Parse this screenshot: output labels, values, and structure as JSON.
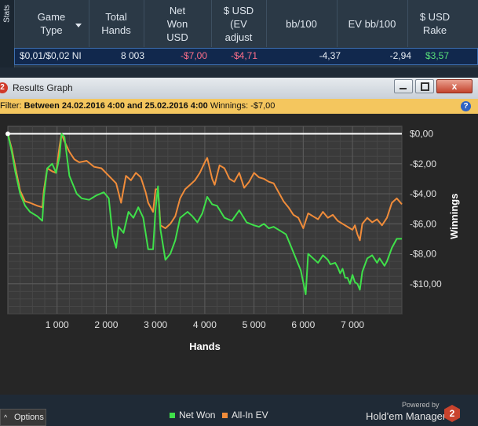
{
  "stats": {
    "tab_label": "Stats",
    "columns": [
      {
        "label": "Game\nType"
      },
      {
        "label": "Total\nHands"
      },
      {
        "label": "Net\nWon\nUSD"
      },
      {
        "label": "$ USD\n(EV\nadjust"
      },
      {
        "label": "bb/100"
      },
      {
        "label": "EV bb/100"
      },
      {
        "label": "$ USD\nRake"
      }
    ],
    "row": {
      "game_type": "$0,01/$0,02 NI",
      "total_hands": "8 003",
      "net_won": "-$7,00",
      "ev_adjusted": "-$4,71",
      "bb100": "-4,37",
      "ev_bb100": "-2,94",
      "rake": "$3,57"
    },
    "colors": {
      "negative": "#ff6f8a",
      "positive": "#58e07a"
    }
  },
  "window": {
    "badge": "2",
    "title": "Results Graph",
    "close_glyph": "x"
  },
  "filter": {
    "prefix": "Filter:",
    "range": "Between 24.02.2016 4:00 and 25.02.2016 4:00",
    "winnings": "Winnings: -$7,00",
    "help_glyph": "?"
  },
  "chart_data": {
    "type": "line",
    "xlabel": "Hands",
    "ylabel": "Winnings",
    "xlim": [
      0,
      8003
    ],
    "ylim": [
      -12,
      0.5
    ],
    "x_ticks": [
      1000,
      2000,
      3000,
      4000,
      5000,
      6000,
      7000
    ],
    "x_tick_labels": [
      "1 000",
      "2 000",
      "3 000",
      "4 000",
      "5 000",
      "6 000",
      "7 000"
    ],
    "y_ticks": [
      0,
      -2,
      -4,
      -6,
      -8,
      -10
    ],
    "y_tick_labels": [
      "$0,00",
      "-$2,00",
      "-$4,00",
      "-$6,00",
      "-$8,00",
      "-$10,00"
    ],
    "grid": true,
    "legend": "bottom",
    "series": [
      {
        "name": "Net Won",
        "color": "#3fe04a",
        "points": [
          [
            0,
            0
          ],
          [
            80,
            -1.2
          ],
          [
            150,
            -2.5
          ],
          [
            250,
            -4
          ],
          [
            350,
            -4.8
          ],
          [
            450,
            -5.2
          ],
          [
            600,
            -5.5
          ],
          [
            700,
            -5.8
          ],
          [
            730,
            -4.2
          ],
          [
            800,
            -2.3
          ],
          [
            900,
            -2
          ],
          [
            980,
            -2.6
          ],
          [
            1050,
            -1.5
          ],
          [
            1090,
            0
          ],
          [
            1150,
            -0.2
          ],
          [
            1250,
            -2.8
          ],
          [
            1400,
            -4
          ],
          [
            1500,
            -4.3
          ],
          [
            1650,
            -4.4
          ],
          [
            1800,
            -4.1
          ],
          [
            1950,
            -3.9
          ],
          [
            2050,
            -4.3
          ],
          [
            2130,
            -6.8
          ],
          [
            2200,
            -7.6
          ],
          [
            2250,
            -6.2
          ],
          [
            2350,
            -6.6
          ],
          [
            2450,
            -5.2
          ],
          [
            2550,
            -5.6
          ],
          [
            2650,
            -4.9
          ],
          [
            2750,
            -5.6
          ],
          [
            2850,
            -7.7
          ],
          [
            2950,
            -7.7
          ],
          [
            3000,
            -5
          ],
          [
            3050,
            -3.5
          ],
          [
            3100,
            -6.4
          ],
          [
            3200,
            -8.4
          ],
          [
            3300,
            -8
          ],
          [
            3400,
            -7.1
          ],
          [
            3500,
            -5.6
          ],
          [
            3650,
            -5.2
          ],
          [
            3750,
            -5.5
          ],
          [
            3850,
            -5.9
          ],
          [
            3950,
            -5.3
          ],
          [
            4050,
            -4.2
          ],
          [
            4150,
            -4.7
          ],
          [
            4250,
            -4.8
          ],
          [
            4400,
            -5.6
          ],
          [
            4550,
            -5.8
          ],
          [
            4700,
            -5.1
          ],
          [
            4850,
            -5.9
          ],
          [
            5000,
            -6.1
          ],
          [
            5100,
            -6.2
          ],
          [
            5200,
            -6
          ],
          [
            5300,
            -6.3
          ],
          [
            5400,
            -6.2
          ],
          [
            5550,
            -6.5
          ],
          [
            5650,
            -6.7
          ],
          [
            5750,
            -7.5
          ],
          [
            5850,
            -8.3
          ],
          [
            5950,
            -9.1
          ],
          [
            6050,
            -10.7
          ],
          [
            6100,
            -8
          ],
          [
            6200,
            -8.3
          ],
          [
            6300,
            -8.6
          ],
          [
            6400,
            -8.1
          ],
          [
            6500,
            -8.4
          ],
          [
            6550,
            -8.7
          ],
          [
            6650,
            -8.6
          ],
          [
            6700,
            -8.9
          ],
          [
            6750,
            -9.3
          ],
          [
            6800,
            -9
          ],
          [
            6850,
            -9.6
          ],
          [
            6900,
            -9.6
          ],
          [
            6950,
            -10
          ],
          [
            7000,
            -9.4
          ],
          [
            7050,
            -9.9
          ],
          [
            7100,
            -10
          ],
          [
            7150,
            -10.4
          ],
          [
            7200,
            -9.2
          ],
          [
            7300,
            -8.3
          ],
          [
            7400,
            -8.1
          ],
          [
            7500,
            -8.6
          ],
          [
            7550,
            -8.3
          ],
          [
            7650,
            -8.8
          ],
          [
            7700,
            -8.5
          ],
          [
            7800,
            -7.6
          ],
          [
            7900,
            -7
          ],
          [
            8003,
            -7
          ]
        ]
      },
      {
        "name": "All-In EV",
        "color": "#f08c3a",
        "points": [
          [
            0,
            0
          ],
          [
            80,
            -1
          ],
          [
            150,
            -2.2
          ],
          [
            250,
            -3.8
          ],
          [
            350,
            -4.5
          ],
          [
            450,
            -4.6
          ],
          [
            600,
            -4.8
          ],
          [
            700,
            -4.9
          ],
          [
            730,
            -3.8
          ],
          [
            800,
            -2.3
          ],
          [
            900,
            -2.5
          ],
          [
            980,
            -2.6
          ],
          [
            1050,
            -0.8
          ],
          [
            1090,
            0
          ],
          [
            1150,
            -0.5
          ],
          [
            1250,
            -1.2
          ],
          [
            1350,
            -1.7
          ],
          [
            1450,
            -1.9
          ],
          [
            1600,
            -1.8
          ],
          [
            1750,
            -2.2
          ],
          [
            1900,
            -2.3
          ],
          [
            2050,
            -2.8
          ],
          [
            2200,
            -3.3
          ],
          [
            2300,
            -4.6
          ],
          [
            2400,
            -2.8
          ],
          [
            2500,
            -3.1
          ],
          [
            2600,
            -2.6
          ],
          [
            2700,
            -2.9
          ],
          [
            2800,
            -3.9
          ],
          [
            2850,
            -4.6
          ],
          [
            2950,
            -5.2
          ],
          [
            3000,
            -3.7
          ],
          [
            3050,
            -3.7
          ],
          [
            3100,
            -6.1
          ],
          [
            3200,
            -6.3
          ],
          [
            3300,
            -6
          ],
          [
            3400,
            -5.5
          ],
          [
            3500,
            -4.3
          ],
          [
            3600,
            -3.7
          ],
          [
            3700,
            -3.4
          ],
          [
            3800,
            -3.1
          ],
          [
            3900,
            -2.6
          ],
          [
            4000,
            -1.9
          ],
          [
            4050,
            -1.6
          ],
          [
            4150,
            -3
          ],
          [
            4200,
            -3.4
          ],
          [
            4300,
            -2.1
          ],
          [
            4400,
            -2.3
          ],
          [
            4500,
            -3
          ],
          [
            4600,
            -3.2
          ],
          [
            4700,
            -2.6
          ],
          [
            4800,
            -3.6
          ],
          [
            4900,
            -3.2
          ],
          [
            5000,
            -2.6
          ],
          [
            5100,
            -2.9
          ],
          [
            5200,
            -3
          ],
          [
            5300,
            -3.2
          ],
          [
            5400,
            -3.3
          ],
          [
            5500,
            -3.9
          ],
          [
            5600,
            -4.5
          ],
          [
            5700,
            -4.9
          ],
          [
            5800,
            -5.4
          ],
          [
            5900,
            -5.6
          ],
          [
            6000,
            -6.3
          ],
          [
            6100,
            -5.3
          ],
          [
            6200,
            -5.5
          ],
          [
            6300,
            -5.7
          ],
          [
            6400,
            -5.2
          ],
          [
            6500,
            -5.6
          ],
          [
            6600,
            -5.4
          ],
          [
            6700,
            -5.8
          ],
          [
            6800,
            -6
          ],
          [
            6900,
            -6.2
          ],
          [
            7000,
            -6.4
          ],
          [
            7050,
            -6.1
          ],
          [
            7100,
            -6.7
          ],
          [
            7150,
            -7.1
          ],
          [
            7200,
            -6
          ],
          [
            7300,
            -5.6
          ],
          [
            7400,
            -5.9
          ],
          [
            7500,
            -5.7
          ],
          [
            7600,
            -6.1
          ],
          [
            7700,
            -5.6
          ],
          [
            7800,
            -4.6
          ],
          [
            7900,
            -4.3
          ],
          [
            8003,
            -4.7
          ]
        ]
      }
    ],
    "zero_line_color": "#ffffff"
  },
  "footer": {
    "options_caret": "^",
    "options_label": "Options",
    "legend_net_won": "Net Won",
    "legend_allin_ev": "All-In EV",
    "powered_by": "Powered by",
    "brand": "Hold'em Manager",
    "brand_logo": "2"
  }
}
